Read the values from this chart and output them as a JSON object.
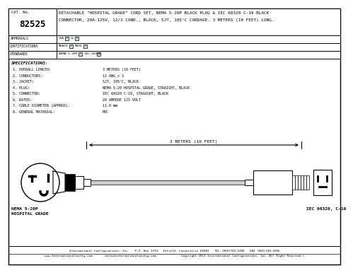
{
  "bg_color": "#ffffff",
  "border_color": "#000000",
  "cat_no": "82525",
  "title_text_line1": "DETACHABLE \"HOSPITAL GRADE\" CORD SET, NEMA 5-20P BLACK PLUG & IEC 60320 C-19 BLACK",
  "title_text_line2": "CONNECTOR, 20A-125V, 12/3 COND., BLACK, SJT, 105°C CORDAGE. 3 METERS (10 FEET) LONG.",
  "approvals_label": "APPROVALS",
  "cert_label": "CERTIFICATIONS",
  "standards_label": "STANDARDS",
  "specs_title": "SPECIFICATIONS:",
  "specs": [
    [
      "1. OVERALL LENGTH:",
      "3 METERS (10 FEET)"
    ],
    [
      "2. CONDUCTORS:",
      "12 AWG x 3"
    ],
    [
      "3. JACKET:",
      "SJT, 105°C, BLACK"
    ],
    [
      "4. PLUG:",
      "NEMA 5-20 HOSPITAL GRADE, STRAIGHT, BLACK"
    ],
    [
      "5. CONNECTOR:",
      "IEC 60320 C-19, STRAIGHT, BLACK"
    ],
    [
      "6. RATED:",
      "20 AMPERE 125 VOLT"
    ],
    [
      "7. CABLE DIAMETER (APPROX):",
      "11.0 mm"
    ],
    [
      "8. GENERAL MATERIAL:",
      "PVC"
    ]
  ],
  "dim_label": "3 METERS (10 FEET)",
  "plug_label_line1": "NEMA 5-20P",
  "plug_label_line2": "HOSPITAL GRADE",
  "conn_label": "IEC 60320, C-19",
  "footer_line1": "International Configurations, Inc.   P.O. Box 3374   Enfield, Connecticut 06083   TEL (860)749-6380   FAX (860)749-2985",
  "footer_line2": "www.InternationalConfig.com       sales@internationalconfig.com              Copyright 2012 International Configurations, Inc. All Right Reserved ©"
}
